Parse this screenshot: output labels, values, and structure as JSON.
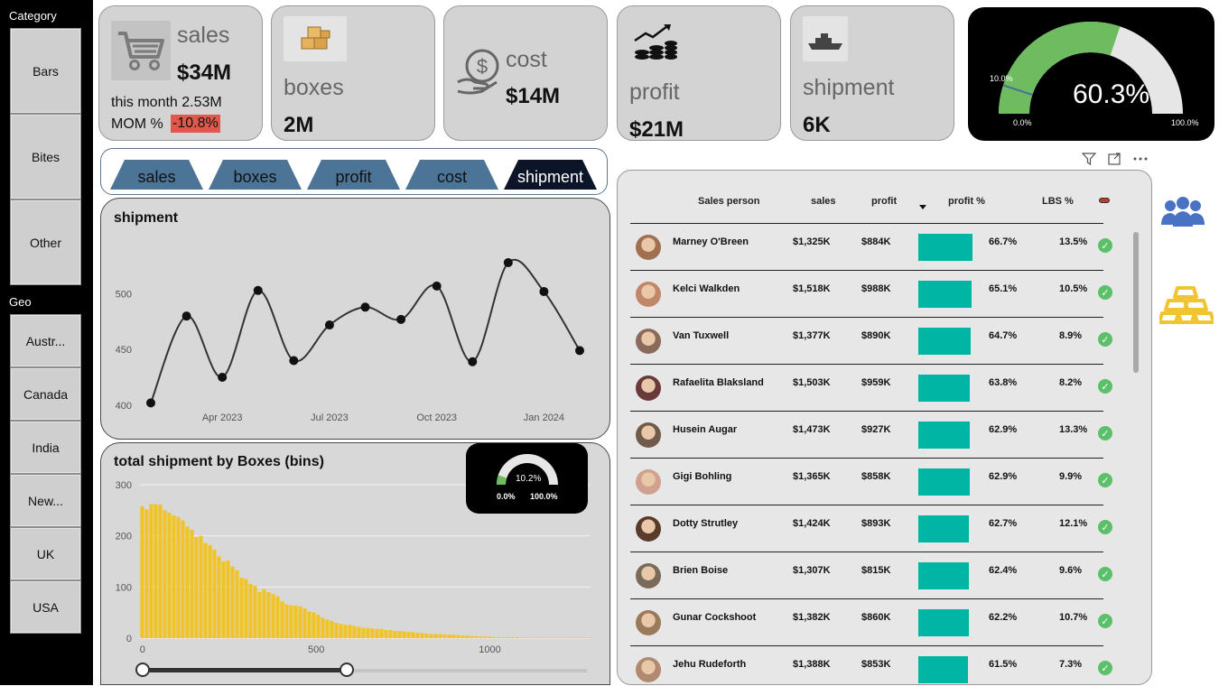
{
  "filters": {
    "category": {
      "title": "Category",
      "items": [
        "Bars",
        "Bites",
        "Other"
      ]
    },
    "geo": {
      "title": "Geo",
      "items": [
        "Austr...",
        "Canada",
        "India",
        "New...",
        "UK",
        "USA"
      ]
    }
  },
  "kpis": {
    "sales": {
      "label": "sales",
      "value": "$34M",
      "this_month": "this month 2.53M",
      "mom_label": "MOM %",
      "mom_value": "-10.8%",
      "icon": "cart-icon"
    },
    "boxes": {
      "label": "boxes",
      "value": "2M",
      "icon": "boxes-icon"
    },
    "cost": {
      "label": "cost",
      "value": "$14M",
      "icon": "dollar-hand-icon"
    },
    "profit": {
      "label": "profit",
      "value": "$21M",
      "icon": "coin-stack-icon"
    },
    "shipment": {
      "label": "shipment",
      "value": "6K",
      "icon": "ship-icon"
    }
  },
  "gauge": {
    "value_label": "60.3%",
    "value": 60.3,
    "target_label": "10.0%",
    "min_label": "0.0%",
    "max_label": "100.0%",
    "fill_color": "#6ebc5f",
    "track_color": "#e6e6e6"
  },
  "tabs": {
    "items": [
      "sales",
      "boxes",
      "profit",
      "cost",
      "shipment"
    ],
    "active": "shipment",
    "color": "#4c7496",
    "active_color": "#0c1528"
  },
  "line_chart": {
    "title": "shipment"
  },
  "bar_chart": {
    "title": "total shipment by Boxes (bins)",
    "mini_gauge": {
      "value_label": "10.2%",
      "min_label": "0.0%",
      "max_label": "100.0%",
      "value": 10.2
    },
    "slider": {
      "low": 0,
      "high": 0.46
    }
  },
  "chart_data": [
    {
      "type": "line",
      "title": "shipment",
      "x": [
        "2023-02",
        "2023-03",
        "2023-04",
        "2023-05",
        "2023-06",
        "2023-07",
        "2023-08",
        "2023-09",
        "2023-10",
        "2023-11",
        "2023-12",
        "2024-01",
        "2024-02"
      ],
      "x_tick_labels": [
        "Apr 2023",
        "Jul 2023",
        "Oct 2023",
        "Jan 2024"
      ],
      "values": [
        402,
        480,
        425,
        503,
        440,
        472,
        488,
        477,
        507,
        439,
        528,
        502,
        449
      ],
      "ylim": [
        395,
        545
      ],
      "y_ticks": [
        400,
        450,
        500
      ],
      "line_color": "#333333",
      "grid": false
    },
    {
      "type": "bar",
      "title": "total shipment by Boxes (bins)",
      "xlim": [
        -10,
        1290
      ],
      "x_ticks": [
        0,
        500,
        1000
      ],
      "ylim": [
        0,
        300
      ],
      "y_ticks": [
        0,
        100,
        200,
        300
      ],
      "bin_width": 13,
      "bar_color": "#f0c428",
      "grid": true,
      "values": [
        258,
        252,
        262,
        262,
        261,
        250,
        245,
        240,
        237,
        230,
        218,
        212,
        198,
        200,
        186,
        182,
        173,
        160,
        150,
        152,
        140,
        133,
        118,
        116,
        106,
        102,
        90,
        96,
        90,
        86,
        82,
        72,
        66,
        64,
        64,
        62,
        58,
        52,
        50,
        46,
        40,
        36,
        34,
        30,
        28,
        26,
        26,
        24,
        22,
        20,
        20,
        19,
        18,
        18,
        16,
        16,
        14,
        14,
        13,
        12,
        12,
        10,
        10,
        9,
        8,
        8,
        8,
        7,
        7,
        6,
        6,
        5,
        5,
        4,
        4,
        3,
        3,
        3,
        2,
        2,
        2,
        2,
        2,
        2,
        1,
        1,
        1,
        1,
        1,
        1,
        1,
        1,
        1,
        1,
        1,
        1,
        1,
        1,
        1,
        1
      ]
    }
  ],
  "table": {
    "columns": {
      "person": "Sales person",
      "sales": "sales",
      "profit": "profit",
      "profit_pct": "profit %",
      "lbs": "LBS %"
    },
    "bar_color": "#00b5a3",
    "rows": [
      {
        "name": "Marney O'Breen",
        "sales": "$1,325K",
        "profit": "$884K",
        "profit_pct": "66.7%",
        "pct": 66.7,
        "lbs": "13.5%"
      },
      {
        "name": "Kelci Walkden",
        "sales": "$1,518K",
        "profit": "$988K",
        "profit_pct": "65.1%",
        "pct": 65.1,
        "lbs": "10.5%"
      },
      {
        "name": "Van Tuxwell",
        "sales": "$1,377K",
        "profit": "$890K",
        "profit_pct": "64.7%",
        "pct": 64.7,
        "lbs": "8.9%"
      },
      {
        "name": "Rafaelita Blaksland",
        "sales": "$1,503K",
        "profit": "$959K",
        "profit_pct": "63.8%",
        "pct": 63.8,
        "lbs": "8.2%"
      },
      {
        "name": "Husein Augar",
        "sales": "$1,473K",
        "profit": "$927K",
        "profit_pct": "62.9%",
        "pct": 62.9,
        "lbs": "13.3%"
      },
      {
        "name": "Gigi Bohling",
        "sales": "$1,365K",
        "profit": "$858K",
        "profit_pct": "62.9%",
        "pct": 62.9,
        "lbs": "9.9%"
      },
      {
        "name": "Dotty Strutley",
        "sales": "$1,424K",
        "profit": "$893K",
        "profit_pct": "62.7%",
        "pct": 62.7,
        "lbs": "12.1%"
      },
      {
        "name": "Brien Boise",
        "sales": "$1,307K",
        "profit": "$815K",
        "profit_pct": "62.4%",
        "pct": 62.4,
        "lbs": "9.6%"
      },
      {
        "name": "Gunar Cockshoot",
        "sales": "$1,382K",
        "profit": "$860K",
        "profit_pct": "62.2%",
        "pct": 62.2,
        "lbs": "10.7%"
      },
      {
        "name": "Jehu Rudeforth",
        "sales": "$1,388K",
        "profit": "$853K",
        "profit_pct": "61.5%",
        "pct": 61.5,
        "lbs": "7.3%"
      }
    ]
  },
  "side_icons": [
    "people-icon",
    "gold-bars-icon"
  ]
}
